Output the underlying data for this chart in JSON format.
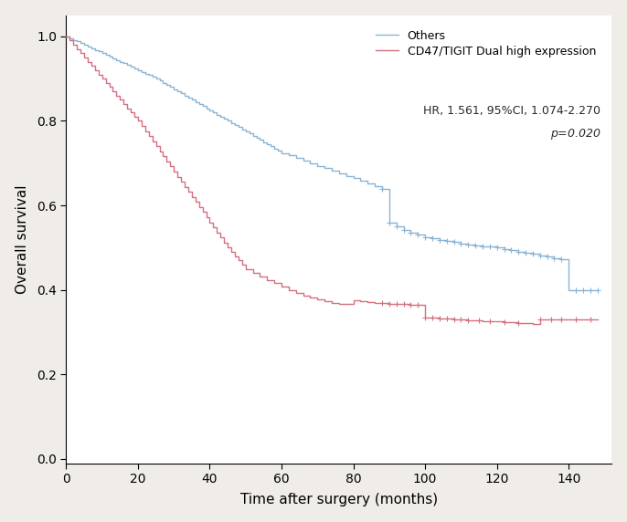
{
  "blue_color": "#8ab4d4",
  "red_color": "#d47080",
  "xlabel": "Time after surgery (months)",
  "ylabel": "Overall survival",
  "xlim": [
    0,
    152
  ],
  "ylim": [
    -0.01,
    1.05
  ],
  "xticks": [
    0,
    20,
    40,
    60,
    80,
    100,
    120,
    140
  ],
  "yticks": [
    0.0,
    0.2,
    0.4,
    0.6,
    0.8,
    1.0
  ],
  "legend_label_blue": "Others",
  "legend_label_red": "CD47/TIGIT Dual high expression",
  "annotation_hr": "HR, 1.561, 95%CI, 1.074-2.270",
  "annotation_p": "p=0.020",
  "bg_color": "#ffffff",
  "outer_bg": "#f0ede8"
}
